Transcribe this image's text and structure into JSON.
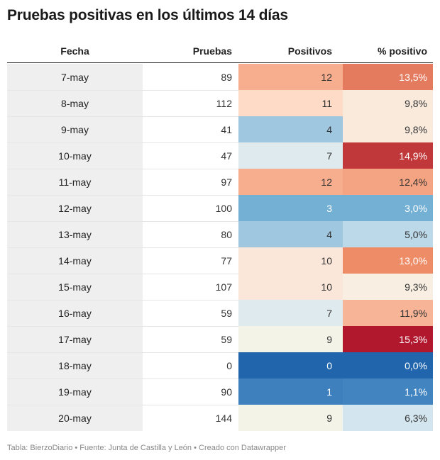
{
  "title": "Pruebas positivas en los últimos 14 días",
  "footer": "Tabla: BierzoDiario • Fuente: Junta de Castilla y León • Creado con Datawrapper",
  "chart_data": {
    "type": "table",
    "columns": [
      "Fecha",
      "Pruebas",
      "Positivos",
      "% positivo"
    ],
    "rows": [
      {
        "fecha": "7-may",
        "pruebas": "89",
        "positivos": "12",
        "pct": "13,5%",
        "pos_bg": "#f7ae8f",
        "pos_fg": "#333333",
        "pct_bg": "#e47b5f",
        "pct_fg": "#ffffff"
      },
      {
        "fecha": "8-may",
        "pruebas": "112",
        "positivos": "11",
        "pct": "9,8%",
        "pos_bg": "#fddbc6",
        "pos_fg": "#333333",
        "pct_bg": "#f9eadc",
        "pct_fg": "#333333"
      },
      {
        "fecha": "9-may",
        "pruebas": "41",
        "positivos": "4",
        "pct": "9,8%",
        "pos_bg": "#a0c7e0",
        "pos_fg": "#333333",
        "pct_bg": "#f9eadc",
        "pct_fg": "#333333"
      },
      {
        "fecha": "10-may",
        "pruebas": "47",
        "positivos": "7",
        "pct": "14,9%",
        "pos_bg": "#dfeaee",
        "pos_fg": "#333333",
        "pct_bg": "#c0383a",
        "pct_fg": "#ffffff"
      },
      {
        "fecha": "11-may",
        "pruebas": "97",
        "positivos": "12",
        "pct": "12,4%",
        "pos_bg": "#f7ae8f",
        "pos_fg": "#333333",
        "pct_bg": "#f4a482",
        "pct_fg": "#333333"
      },
      {
        "fecha": "12-may",
        "pruebas": "100",
        "positivos": "3",
        "pct": "3,0%",
        "pos_bg": "#74afd4",
        "pos_fg": "#ffffff",
        "pct_bg": "#74afd4",
        "pct_fg": "#ffffff"
      },
      {
        "fecha": "13-may",
        "pruebas": "80",
        "positivos": "4",
        "pct": "5,0%",
        "pos_bg": "#a0c7e0",
        "pos_fg": "#333333",
        "pct_bg": "#bcd9ea",
        "pct_fg": "#333333"
      },
      {
        "fecha": "14-may",
        "pruebas": "77",
        "positivos": "10",
        "pct": "13,0%",
        "pos_bg": "#fbe7d9",
        "pos_fg": "#333333",
        "pct_bg": "#ef8c68",
        "pct_fg": "#ffffff"
      },
      {
        "fecha": "15-may",
        "pruebas": "107",
        "positivos": "10",
        "pct": "9,3%",
        "pos_bg": "#fbe7d9",
        "pos_fg": "#333333",
        "pct_bg": "#f8efe2",
        "pct_fg": "#333333"
      },
      {
        "fecha": "16-may",
        "pruebas": "59",
        "positivos": "7",
        "pct": "11,9%",
        "pos_bg": "#dfeaee",
        "pos_fg": "#333333",
        "pct_bg": "#f8b497",
        "pct_fg": "#333333"
      },
      {
        "fecha": "17-may",
        "pruebas": "59",
        "positivos": "9",
        "pct": "15,3%",
        "pos_bg": "#f4f3e7",
        "pos_fg": "#333333",
        "pct_bg": "#b1182e",
        "pct_fg": "#ffffff"
      },
      {
        "fecha": "18-may",
        "pruebas": "0",
        "positivos": "0",
        "pct": "0,0%",
        "pos_bg": "#2166ac",
        "pos_fg": "#ffffff",
        "pct_bg": "#2166ac",
        "pct_fg": "#ffffff"
      },
      {
        "fecha": "19-may",
        "pruebas": "90",
        "positivos": "1",
        "pct": "1,1%",
        "pos_bg": "#3d80bd",
        "pos_fg": "#ffffff",
        "pct_bg": "#4184bf",
        "pct_fg": "#ffffff"
      },
      {
        "fecha": "20-may",
        "pruebas": "144",
        "positivos": "9",
        "pct": "6,3%",
        "pos_bg": "#f4f3e7",
        "pos_fg": "#333333",
        "pct_bg": "#d3e6ef",
        "pct_fg": "#333333"
      }
    ]
  }
}
